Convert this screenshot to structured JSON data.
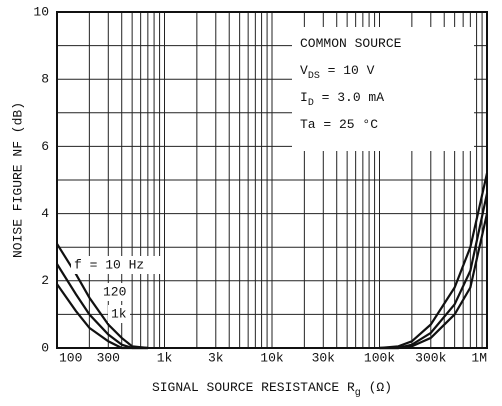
{
  "chart_data": {
    "type": "line",
    "x_log": true,
    "grid": true,
    "ylabel": "NOISE FIGURE  NF  (dB)",
    "xlabel": [
      "SIGNAL SOURCE RESISTANCE  R",
      "g",
      "  (Ω)"
    ],
    "conditions": [
      [
        "COMMON SOURCE"
      ],
      [
        "V",
        "DS",
        " = 10 V"
      ],
      [
        "I",
        "D",
        " = 3.0 mA"
      ],
      [
        "Ta = 25 °C"
      ]
    ],
    "xlim": [
      100,
      1000000
    ],
    "ylim": [
      0,
      10
    ],
    "yticks": [
      0,
      2,
      4,
      6,
      8,
      10
    ],
    "minor_yticks": [
      1,
      3,
      5,
      7,
      9
    ],
    "xticks": [
      {
        "value": 100,
        "label": "100"
      },
      {
        "value": 300,
        "label": "300"
      },
      {
        "value": 1000,
        "label": "1k"
      },
      {
        "value": 3000,
        "label": "3k"
      },
      {
        "value": 10000,
        "label": "10k"
      },
      {
        "value": 30000,
        "label": "30k"
      },
      {
        "value": 100000,
        "label": "100k"
      },
      {
        "value": 300000,
        "label": "300k"
      },
      {
        "value": 1000000,
        "label": "1M"
      }
    ],
    "minor_xticks": [
      200,
      400,
      500,
      600,
      700,
      800,
      900,
      2000,
      4000,
      5000,
      6000,
      7000,
      8000,
      9000,
      20000,
      40000,
      50000,
      60000,
      70000,
      80000,
      90000,
      200000,
      400000,
      500000,
      600000,
      700000,
      800000,
      900000
    ],
    "x": [
      100,
      150,
      200,
      300,
      400,
      500,
      700,
      10000,
      100000,
      150000,
      200000,
      300000,
      500000,
      700000,
      1000000
    ],
    "series": [
      {
        "name": "f = 10 Hz",
        "color": "#111",
        "values": [
          3.1,
          2.2,
          1.5,
          0.7,
          0.3,
          0.05,
          0,
          null,
          0,
          0.05,
          0.2,
          0.7,
          1.8,
          3.0,
          5.2
        ]
      },
      {
        "name": "120",
        "color": "#111",
        "values": [
          2.5,
          1.6,
          1.0,
          0.4,
          0.1,
          0,
          0,
          null,
          0,
          0,
          0.1,
          0.45,
          1.3,
          2.3,
          4.6
        ]
      },
      {
        "name": "1k",
        "color": "#111",
        "values": [
          1.9,
          1.1,
          0.6,
          0.2,
          0,
          0,
          0,
          null,
          0,
          0,
          0.05,
          0.3,
          1.0,
          1.8,
          4.0
        ]
      }
    ]
  }
}
